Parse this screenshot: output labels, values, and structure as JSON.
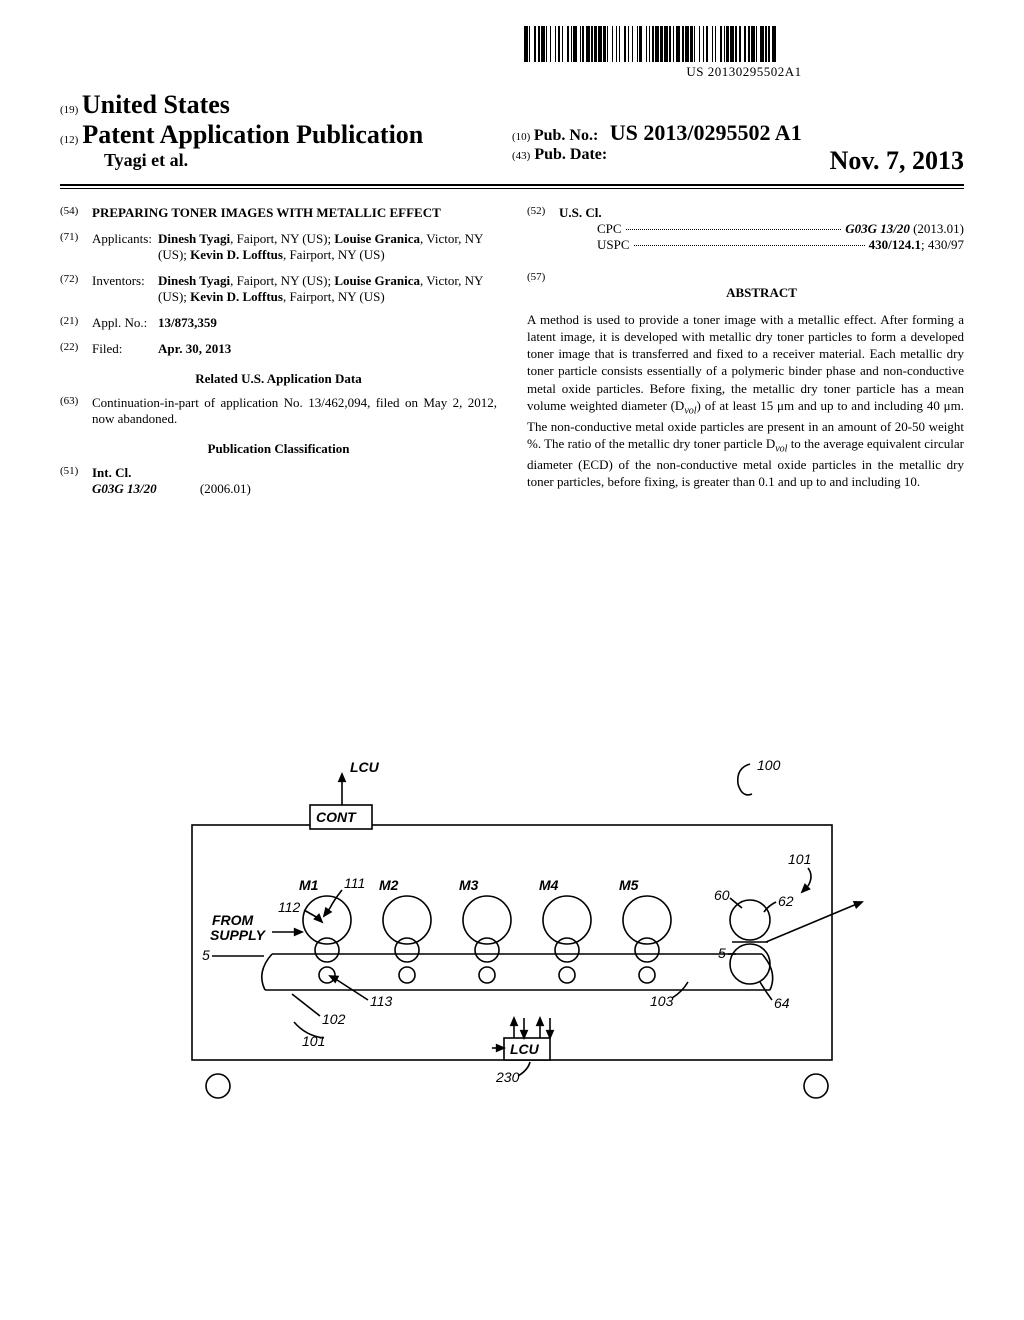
{
  "barcode_text": "US 20130295502A1",
  "header": {
    "code19": "(19)",
    "country": "United States",
    "code12": "(12)",
    "pubtype": "Patent Application Publication",
    "authors": "Tyagi et al.",
    "code10": "(10)",
    "pubno_label": "Pub. No.:",
    "pubno_value": "US 2013/0295502 A1",
    "code43": "(43)",
    "pubdate_label": "Pub. Date:",
    "pubdate_value": "Nov. 7, 2013"
  },
  "left": {
    "f54": {
      "num": "(54)",
      "val": "PREPARING TONER IMAGES WITH METALLIC EFFECT"
    },
    "f71": {
      "num": "(71)",
      "label": "Applicants:",
      "val": "Dinesh Tyagi, Faiport, NY (US); Louise Granica, Victor, NY (US); Kevin D. Lofftus, Fairport, NY (US)",
      "val_html": "<span class='bold'>Dinesh Tyagi</span>, Faiport, NY (US); <span class='bold'>Louise Granica</span>, Victor, NY (US); <span class='bold'>Kevin D. Lofftus</span>, Fairport, NY (US)"
    },
    "f72": {
      "num": "(72)",
      "label": "Inventors:",
      "val_html": "<span class='bold'>Dinesh Tyagi</span>, Faiport, NY (US); <span class='bold'>Louise Granica</span>, Victor, NY (US); <span class='bold'>Kevin D. Lofftus</span>, Fairport, NY (US)"
    },
    "f21": {
      "num": "(21)",
      "label": "Appl. No.:",
      "val": "13/873,359"
    },
    "f22": {
      "num": "(22)",
      "label": "Filed:",
      "val": "Apr. 30, 2013"
    },
    "related_head": "Related U.S. Application Data",
    "f63": {
      "num": "(63)",
      "val": "Continuation-in-part of application No. 13/462,094, filed on May 2, 2012, now abandoned."
    },
    "pubclass_head": "Publication Classification",
    "f51": {
      "num": "(51)",
      "label": "Int. Cl.",
      "code": "G03G 13/20",
      "year": "(2006.01)"
    }
  },
  "right": {
    "f52": {
      "num": "(52)",
      "label": "U.S. Cl.",
      "cpc_label": "CPC",
      "cpc_val": "G03G 13/20",
      "cpc_year": "(2013.01)",
      "uspc_label": "USPC",
      "uspc_val": "430/124.1; 430/97"
    },
    "f57": {
      "num": "(57)",
      "label": "ABSTRACT"
    },
    "abstract": "A method is used to provide a toner image with a metallic effect. After forming a latent image, it is developed with metallic dry toner particles to form a developed toner image that is transferred and fixed to a receiver material. Each metallic dry toner particle consists essentially of a polymeric binder phase and non-conductive metal oxide particles. Before fixing, the metallic dry toner particle has a mean volume weighted diameter (D_vol) of at least 15 μm and up to and including 40 μm. The non-conductive metal oxide particles are present in an amount of 20-50 weight %. The ratio of the metallic dry toner particle D_vol to the average equivalent circular diameter (ECD) of the non-conductive metal oxide particles in the metallic dry toner particles, before fixing, is greater than 0.1 and up to and including 10."
  },
  "figure": {
    "labels": {
      "lcu_top": "LCU",
      "cont": "CONT",
      "from_supply": "FROM\nSUPPLY",
      "m1": "M1",
      "m2": "M2",
      "m3": "M3",
      "m4": "M4",
      "m5": "M5",
      "n100": "100",
      "n101a": "101",
      "n60": "60",
      "n62": "62",
      "n5a": "5",
      "n5b": "5",
      "n64": "64",
      "n103": "103",
      "n111": "111",
      "n112": "112",
      "n113": "113",
      "n102": "102",
      "n101b": "101",
      "lcu_bot": "LCU",
      "n230": "230"
    },
    "style": {
      "stroke": "#000000",
      "stroke_width": 1.6,
      "font_family": "Arial, Helvetica, sans-serif",
      "label_fontsize": 14,
      "label_italic_fontsize": 14
    }
  }
}
